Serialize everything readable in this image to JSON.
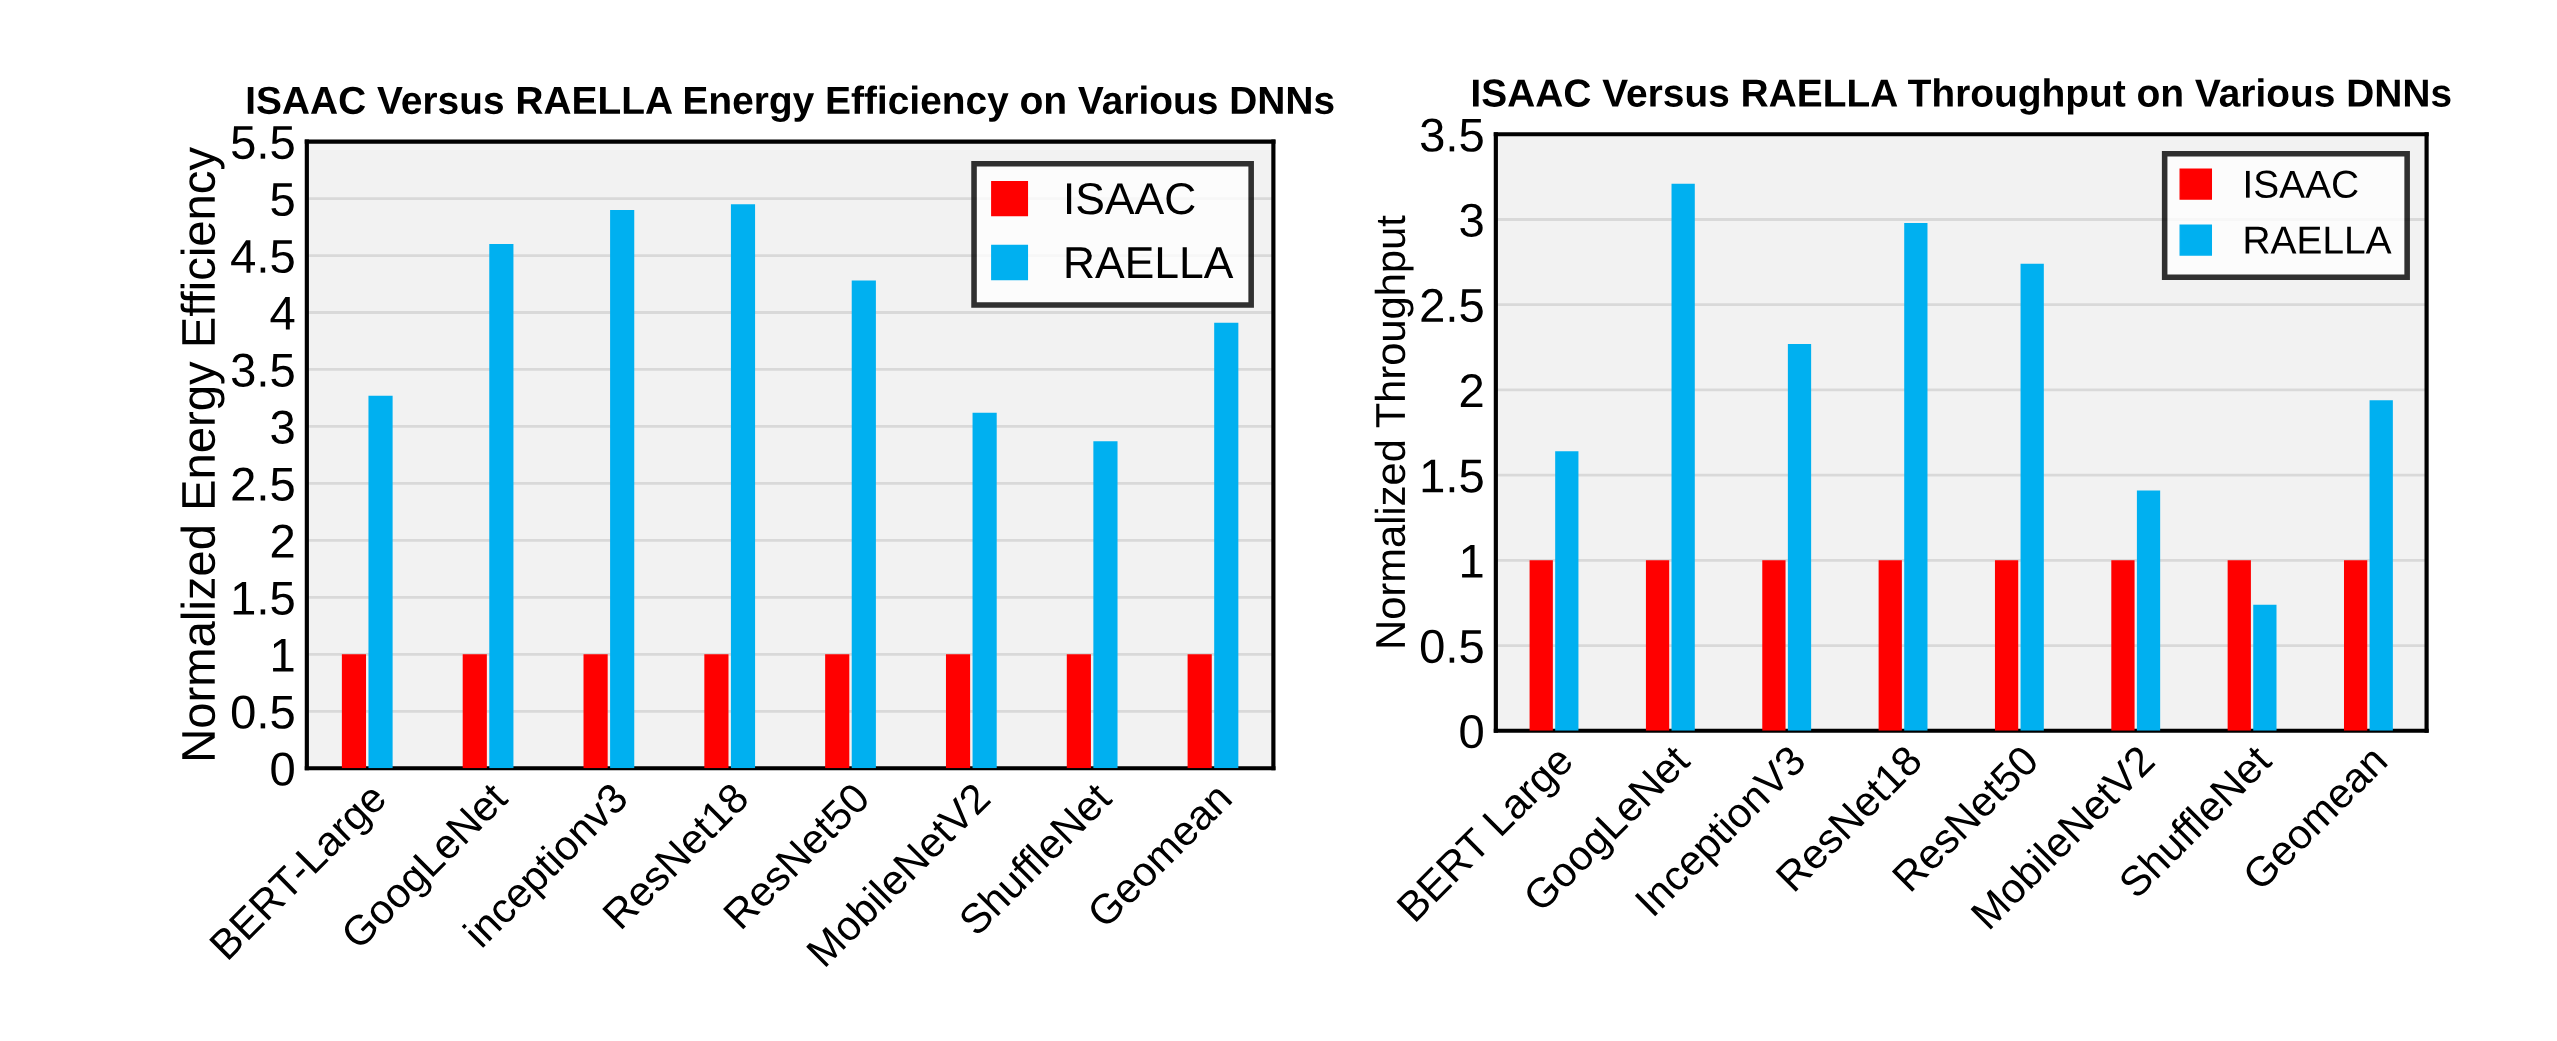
{
  "chart_data": [
    {
      "type": "bar",
      "title": "ISAAC Versus RAELLA Energy Efficiency on Various DNNs",
      "ylabel": "Normalized Energy Efficiency",
      "categories": [
        "BERT-Large",
        "GoogLeNet",
        "inceptionv3",
        "ResNet18",
        "ResNet50",
        "MobileNetV2",
        "ShuffleNet",
        "Geomean"
      ],
      "series": [
        {
          "name": "ISAAC",
          "color": "#ff0000",
          "values": [
            1,
            1,
            1,
            1,
            1,
            1,
            1,
            1
          ]
        },
        {
          "name": "RAELLA",
          "color": "#00b0f0",
          "values": [
            3.27,
            4.6,
            4.9,
            4.95,
            4.28,
            3.12,
            2.87,
            3.91
          ]
        }
      ],
      "ylim": [
        0,
        5.5
      ],
      "yticks": [
        0,
        0.5,
        1,
        1.5,
        2,
        2.5,
        3,
        3.5,
        4,
        4.5,
        5,
        5.5
      ],
      "grid": "y",
      "legend": "top right"
    },
    {
      "type": "bar",
      "title": "ISAAC Versus RAELLA Throughput on Various DNNs",
      "ylabel": "Normalized Throughput",
      "categories": [
        "BERT Large",
        "GoogLeNet",
        "InceptionV3",
        "ResNet18",
        "ResNet50",
        "MobileNetV2",
        "ShuffleNet",
        "Geomean"
      ],
      "series": [
        {
          "name": "ISAAC",
          "color": "#ff0000",
          "values": [
            1,
            1,
            1,
            1,
            1,
            1,
            1,
            1
          ]
        },
        {
          "name": "RAELLA",
          "color": "#00b0f0",
          "values": [
            1.64,
            3.21,
            2.27,
            2.98,
            2.74,
            1.41,
            0.74,
            1.94
          ]
        }
      ],
      "ylim": [
        0,
        3.5
      ],
      "yticks": [
        0,
        0.5,
        1,
        1.5,
        2,
        2.5,
        3,
        3.5
      ],
      "grid": "y",
      "legend": "top right"
    }
  ]
}
